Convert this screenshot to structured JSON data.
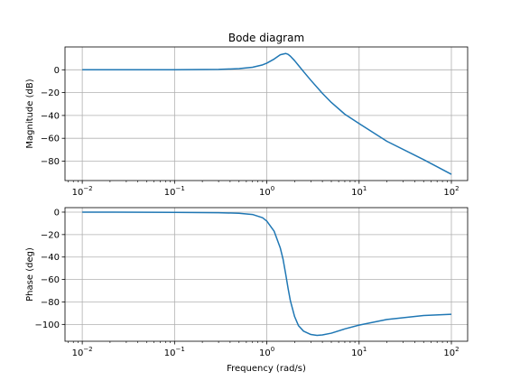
{
  "chart_data": [
    {
      "type": "line",
      "title": "Bode diagram",
      "xlabel": "",
      "ylabel": "Magnitude (dB)",
      "xscale": "log",
      "xlim": [
        0.0065,
        150
      ],
      "ylim": [
        -97,
        20
      ],
      "grid": true,
      "color": "#1f77b4",
      "xticks": [
        {
          "value": 0.01,
          "base": "10",
          "exp": "−2"
        },
        {
          "value": 0.1,
          "base": "10",
          "exp": "−1"
        },
        {
          "value": 1,
          "base": "10",
          "exp": "0"
        },
        {
          "value": 10,
          "base": "10",
          "exp": "1"
        },
        {
          "value": 100,
          "base": "10",
          "exp": "2"
        }
      ],
      "yticks": [
        {
          "value": 0,
          "label": "0"
        },
        {
          "value": -20,
          "label": "−20"
        },
        {
          "value": -40,
          "label": "−40"
        },
        {
          "value": -60,
          "label": "−60"
        },
        {
          "value": -80,
          "label": "−80"
        }
      ],
      "series": [
        {
          "x": [
            0.01,
            0.03,
            0.1,
            0.3,
            0.5,
            0.7,
            0.9,
            1.0,
            1.2,
            1.4,
            1.6,
            1.7,
            1.8,
            2.0,
            2.2,
            2.5,
            3.0,
            4.0,
            5.0,
            7.0,
            10,
            20,
            50,
            100
          ],
          "y": [
            0.0,
            0.0,
            0.0,
            0.3,
            1.0,
            2.2,
            4.3,
            5.8,
            9.4,
            13.2,
            14.3,
            13.5,
            11.9,
            8.0,
            3.9,
            -1.6,
            -9.2,
            -20.6,
            -28.6,
            -38.9,
            -47.1,
            -62.6,
            -78.7,
            -91.5
          ]
        }
      ]
    },
    {
      "type": "line",
      "title": "",
      "xlabel": "Frequency (rad/s)",
      "ylabel": "Phase (deg)",
      "xscale": "log",
      "xlim": [
        0.0065,
        150
      ],
      "ylim": [
        -115,
        4
      ],
      "grid": true,
      "color": "#1f77b4",
      "xticks": [
        {
          "value": 0.01,
          "base": "10",
          "exp": "−2"
        },
        {
          "value": 0.1,
          "base": "10",
          "exp": "−1"
        },
        {
          "value": 1,
          "base": "10",
          "exp": "0"
        },
        {
          "value": 10,
          "base": "10",
          "exp": "1"
        },
        {
          "value": 100,
          "base": "10",
          "exp": "2"
        }
      ],
      "yticks": [
        {
          "value": 0,
          "label": "0"
        },
        {
          "value": -20,
          "label": "−20"
        },
        {
          "value": -40,
          "label": "−40"
        },
        {
          "value": -60,
          "label": "−60"
        },
        {
          "value": -80,
          "label": "−80"
        },
        {
          "value": -100,
          "label": "−100"
        }
      ],
      "series": [
        {
          "x": [
            0.01,
            0.1,
            0.3,
            0.5,
            0.7,
            0.9,
            1.0,
            1.2,
            1.4,
            1.5,
            1.6,
            1.7,
            1.8,
            2.0,
            2.2,
            2.5,
            3.0,
            3.5,
            4.0,
            5.0,
            7.0,
            10,
            20,
            50,
            100
          ],
          "y": [
            0.0,
            -0.2,
            -0.5,
            -1.0,
            -2.1,
            -5.0,
            -8.0,
            -17.0,
            -32.0,
            -42.0,
            -55.0,
            -68.0,
            -79.0,
            -93.0,
            -101.0,
            -106.0,
            -109.0,
            -109.8,
            -109.4,
            -107.8,
            -104.0,
            -100.6,
            -95.6,
            -92.1,
            -91.0
          ]
        }
      ]
    }
  ]
}
